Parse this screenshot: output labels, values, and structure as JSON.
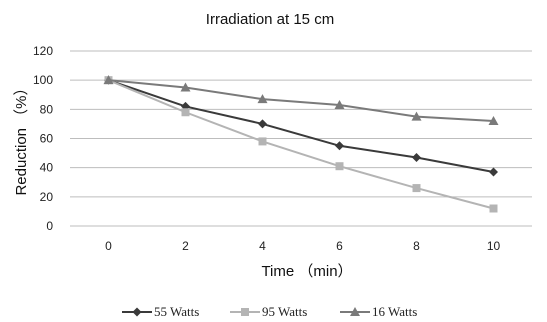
{
  "chart_data": {
    "type": "line",
    "title": "Irradiation at 15 cm",
    "xlabel": "Time （min）",
    "ylabel": "Reduction （%）",
    "x": [
      0,
      2,
      4,
      6,
      8,
      10
    ],
    "xlim": [
      -1,
      11
    ],
    "ylim": [
      0,
      120
    ],
    "yticks": [
      0,
      20,
      40,
      60,
      80,
      100,
      120
    ],
    "xticks": [
      0,
      2,
      4,
      6,
      8,
      10
    ],
    "grid": "horizontal",
    "legend_position": "bottom",
    "series": [
      {
        "name": "55 Watts",
        "values": [
          100,
          82,
          70,
          55,
          47,
          37
        ],
        "color": "#3a3a3a",
        "marker": "diamond"
      },
      {
        "name": "95 Watts",
        "values": [
          100,
          78,
          58,
          41,
          26,
          12
        ],
        "color": "#b4b4b4",
        "marker": "square"
      },
      {
        "name": "16 Watts",
        "values": [
          100,
          95,
          87,
          83,
          75,
          72
        ],
        "color": "#7a7a7a",
        "marker": "triangle"
      }
    ]
  }
}
